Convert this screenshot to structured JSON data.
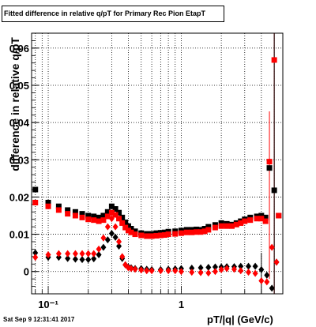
{
  "chart_data": {
    "type": "scatter",
    "title": "Fitted difference in relative q/pT for Primary Rec Pion EtapT",
    "xlabel": "pT/|q| (GeV/c)",
    "ylabel": "difference in relative q/pT",
    "xscale": "log",
    "xlim": [
      0.075,
      5.8
    ],
    "ylim": [
      -0.006,
      0.064
    ],
    "grid": true,
    "yticks": [
      "0",
      "0.01",
      "0.02",
      "0.03",
      "0.04",
      "0.05",
      "0.06"
    ],
    "xticks": [
      "10⁻¹",
      "1"
    ],
    "series": [
      {
        "color": "#000000",
        "marker": "square",
        "x": [
          0.08,
          0.1,
          0.12,
          0.14,
          0.16,
          0.18,
          0.2,
          0.22,
          0.24,
          0.26,
          0.28,
          0.3,
          0.32,
          0.34,
          0.36,
          0.38,
          0.4,
          0.42,
          0.45,
          0.5,
          0.55,
          0.6,
          0.65,
          0.7,
          0.75,
          0.8,
          0.9,
          1.0,
          1.1,
          1.2,
          1.3,
          1.4,
          1.5,
          1.6,
          1.8,
          2.0,
          2.2,
          2.4,
          2.6,
          2.8,
          3.0,
          3.3,
          3.7,
          4.0,
          4.3,
          4.6,
          5.0,
          5.4
        ],
        "y": [
          0.022,
          0.0185,
          0.0175,
          0.0165,
          0.016,
          0.0155,
          0.015,
          0.0148,
          0.0145,
          0.015,
          0.016,
          0.0175,
          0.0168,
          0.0158,
          0.0145,
          0.0132,
          0.0122,
          0.0115,
          0.0108,
          0.0103,
          0.0101,
          0.0101,
          0.0103,
          0.0104,
          0.0105,
          0.0107,
          0.0108,
          0.011,
          0.0112,
          0.0112,
          0.0113,
          0.0112,
          0.0115,
          0.012,
          0.0125,
          0.013,
          0.0128,
          0.0126,
          0.013,
          0.0135,
          0.014,
          0.0145,
          0.0148,
          0.015,
          0.0145,
          0.0278,
          0.0218,
          0.015
        ]
      },
      {
        "color": "#000000",
        "marker": "diamond",
        "x": [
          0.08,
          0.1,
          0.12,
          0.14,
          0.16,
          0.18,
          0.2,
          0.22,
          0.24,
          0.26,
          0.28,
          0.3,
          0.32,
          0.34,
          0.36,
          0.38,
          0.4,
          0.42,
          0.45,
          0.5,
          0.55,
          0.6,
          0.7,
          0.8,
          0.9,
          1.0,
          1.2,
          1.4,
          1.6,
          1.8,
          2.0,
          2.2,
          2.5,
          2.8,
          3.2,
          3.6,
          4.0,
          4.4,
          4.8,
          5.2
        ],
        "y": [
          0.005,
          0.0038,
          0.0038,
          0.0035,
          0.0033,
          0.0032,
          0.0032,
          0.0034,
          0.0045,
          0.0065,
          0.0085,
          0.0102,
          0.0092,
          0.0068,
          0.0035,
          0.0018,
          0.0012,
          0.001,
          0.0008,
          0.0008,
          0.0006,
          0.0005,
          0.0005,
          0.0006,
          0.0007,
          0.0008,
          0.0009,
          0.001,
          0.0011,
          0.0012,
          0.0012,
          0.0013,
          0.0013,
          0.0014,
          0.0014,
          0.0014,
          0.0005,
          -0.001,
          -0.0045,
          0.0025
        ]
      },
      {
        "color": "#ff0000",
        "marker": "square",
        "x": [
          0.08,
          0.1,
          0.12,
          0.14,
          0.16,
          0.18,
          0.2,
          0.22,
          0.24,
          0.26,
          0.28,
          0.3,
          0.32,
          0.34,
          0.36,
          0.38,
          0.4,
          0.42,
          0.45,
          0.5,
          0.55,
          0.6,
          0.65,
          0.7,
          0.75,
          0.8,
          0.9,
          1.0,
          1.1,
          1.2,
          1.3,
          1.4,
          1.5,
          1.6,
          1.8,
          2.0,
          2.2,
          2.4,
          2.6,
          2.8,
          3.0,
          3.3,
          3.7,
          4.0,
          4.3,
          4.6,
          5.0,
          5.4
        ],
        "y": [
          0.0185,
          0.0175,
          0.0165,
          0.0155,
          0.015,
          0.0145,
          0.014,
          0.0138,
          0.0135,
          0.0138,
          0.0148,
          0.0158,
          0.0152,
          0.0142,
          0.013,
          0.0118,
          0.011,
          0.0105,
          0.01,
          0.0097,
          0.0095,
          0.0095,
          0.0096,
          0.0097,
          0.0098,
          0.01,
          0.0101,
          0.0103,
          0.0105,
          0.0105,
          0.0106,
          0.0106,
          0.0108,
          0.0112,
          0.0118,
          0.0122,
          0.0122,
          0.0122,
          0.0126,
          0.013,
          0.0135,
          0.0138,
          0.0142,
          0.0142,
          0.0135,
          0.0295,
          0.0568,
          0.015
        ]
      },
      {
        "color": "#ff0000",
        "marker": "diamond",
        "x": [
          0.08,
          0.1,
          0.12,
          0.14,
          0.16,
          0.18,
          0.2,
          0.22,
          0.24,
          0.26,
          0.28,
          0.3,
          0.32,
          0.34,
          0.36,
          0.38,
          0.4,
          0.42,
          0.45,
          0.5,
          0.55,
          0.6,
          0.7,
          0.8,
          0.9,
          1.0,
          1.2,
          1.4,
          1.6,
          1.8,
          2.0,
          2.2,
          2.5,
          2.8,
          3.2,
          3.6,
          4.0,
          4.4,
          4.8,
          5.2
        ],
        "y": [
          0.0038,
          0.0045,
          0.0048,
          0.0048,
          0.0048,
          0.0048,
          0.0048,
          0.0048,
          0.006,
          0.009,
          0.012,
          0.0142,
          0.012,
          0.008,
          0.004,
          0.0018,
          0.001,
          0.0008,
          0.0006,
          0.0004,
          0.0002,
          0.0002,
          0.0002,
          0.0002,
          0.0002,
          0.0,
          -0.0002,
          -0.0003,
          -0.0004,
          0.0,
          0.0005,
          0.0008,
          0.0006,
          0.0002,
          -0.0002,
          -0.0005,
          -0.0025,
          -0.0028,
          0.0065,
          0.0025
        ]
      }
    ],
    "error_bars": [
      {
        "x": 4.6,
        "y_low": -0.002,
        "y_high": 0.043,
        "color": "#ff0000"
      },
      {
        "x": 5.0,
        "y_low": -0.006,
        "y_high": 0.064,
        "color": "#ff0000"
      },
      {
        "x": 5.0,
        "y_low": -0.006,
        "y_high": 0.064,
        "color": "#000000"
      },
      {
        "x": 4.0,
        "y_low": -0.006,
        "y_high": 0.005,
        "color": "#000000"
      }
    ]
  },
  "footer": "Sat Sep  9 12:31:41 2017"
}
